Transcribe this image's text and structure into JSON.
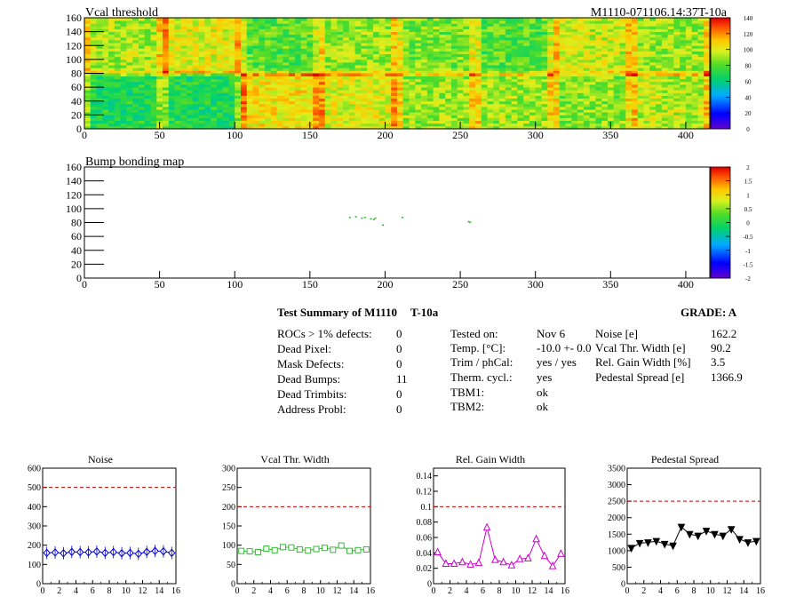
{
  "chart_data": [
    {
      "type": "heatmap",
      "title": "Vcal threshold",
      "title_right": "M1110-071106.14:37T-10a",
      "xlim": [
        0,
        416
      ],
      "ylim": [
        0,
        160
      ],
      "x_ticks": [
        "0",
        "50",
        "100",
        "150",
        "200",
        "250",
        "300",
        "350",
        "400"
      ],
      "y_ticks": [
        "0",
        "20",
        "40",
        "60",
        "80",
        "100",
        "120",
        "140",
        "160"
      ],
      "colorbar": {
        "min": 0,
        "max": 140,
        "ticks": [
          "0",
          "20",
          "40",
          "60",
          "80",
          "100",
          "120",
          "140"
        ]
      },
      "roc_means": {
        "top": [
          92,
          100,
          80,
          90,
          85,
          80,
          96,
          90
        ],
        "bottom": [
          70,
          70,
          104,
          100,
          90,
          90,
          88,
          94
        ]
      }
    },
    {
      "type": "heatmap",
      "title": "Bump bonding map",
      "xlim": [
        0,
        416
      ],
      "ylim": [
        0,
        160
      ],
      "x_ticks": [
        "0",
        "50",
        "100",
        "150",
        "200",
        "250",
        "300",
        "350",
        "400"
      ],
      "y_ticks": [
        "0",
        "20",
        "40",
        "60",
        "80",
        "100",
        "120",
        "140",
        "160"
      ],
      "colorbar": {
        "min": -2,
        "max": 2,
        "ticks": [
          "-2",
          "-1.5",
          "-1",
          "-0.5",
          "0",
          "0.5",
          "1",
          "1.5",
          "2"
        ]
      },
      "points": [
        [
          176,
          87
        ],
        [
          180,
          88
        ],
        [
          184,
          86
        ],
        [
          186,
          87
        ],
        [
          190,
          85
        ],
        [
          192,
          84
        ],
        [
          193,
          86
        ],
        [
          198,
          76
        ],
        [
          211,
          87
        ],
        [
          255,
          81
        ],
        [
          256,
          80
        ]
      ]
    },
    {
      "type": "line",
      "title": "Noise",
      "xlim": [
        0,
        16
      ],
      "ylim": [
        0,
        600
      ],
      "x_ticks": [
        "0",
        "2",
        "4",
        "6",
        "8",
        "10",
        "12",
        "14",
        "16"
      ],
      "y_ticks": [
        "0",
        "100",
        "200",
        "300",
        "400",
        "500",
        "600"
      ],
      "threshold": 500,
      "series": [
        {
          "values": [
            160,
            162,
            158,
            165,
            164,
            163,
            167,
            160,
            164,
            158,
            160,
            155,
            165,
            170,
            168,
            160
          ],
          "color": "#0000cc",
          "marker": "diamond"
        }
      ]
    },
    {
      "type": "line",
      "title": "Vcal Thr. Width",
      "xlim": [
        0,
        16
      ],
      "ylim": [
        0,
        300
      ],
      "x_ticks": [
        "0",
        "2",
        "4",
        "6",
        "8",
        "10",
        "12",
        "14",
        "16"
      ],
      "y_ticks": [
        "0",
        "50",
        "100",
        "150",
        "200",
        "250",
        "300"
      ],
      "threshold": 200,
      "series": [
        {
          "values": [
            85,
            84,
            82,
            91,
            87,
            95,
            94,
            89,
            86,
            90,
            93,
            88,
            99,
            85,
            87,
            89
          ],
          "color": "#33bb33",
          "marker": "square"
        }
      ]
    },
    {
      "type": "line",
      "title": "Rel. Gain Width",
      "xlim": [
        0,
        16
      ],
      "ylim": [
        0,
        0.15
      ],
      "x_ticks": [
        "0",
        "2",
        "4",
        "6",
        "8",
        "10",
        "12",
        "14",
        "16"
      ],
      "y_ticks": [
        "0",
        "0.02",
        "0.04",
        "0.06",
        "0.08",
        "0.1",
        "0.12",
        "0.14"
      ],
      "threshold": 0.1,
      "series": [
        {
          "values": [
            0.041,
            0.026,
            0.026,
            0.028,
            0.025,
            0.027,
            0.073,
            0.031,
            0.028,
            0.024,
            0.032,
            0.033,
            0.058,
            0.036,
            0.023,
            0.039
          ],
          "color": "#cc00cc",
          "marker": "triangle"
        }
      ]
    },
    {
      "type": "line",
      "title": "Pedestal Spread",
      "xlim": [
        0,
        16
      ],
      "ylim": [
        0,
        3500
      ],
      "x_ticks": [
        "0",
        "2",
        "4",
        "6",
        "8",
        "10",
        "12",
        "14",
        "16"
      ],
      "y_ticks": [
        "0",
        "500",
        "1000",
        "1500",
        "2000",
        "2500",
        "3000",
        "3500"
      ],
      "threshold": 2500,
      "series": [
        {
          "values": [
            1080,
            1230,
            1250,
            1290,
            1200,
            1150,
            1720,
            1500,
            1450,
            1600,
            1500,
            1450,
            1650,
            1350,
            1250,
            1290
          ],
          "color": "#000000",
          "marker": "triangle-down"
        }
      ]
    }
  ],
  "summary": {
    "title": "Test Summary of M1110",
    "temp_label": "T-10a",
    "grade": "GRADE:  A",
    "col1": [
      {
        "label": "ROCs > 1% defects:",
        "value": "0"
      },
      {
        "label": "Dead Pixel:",
        "value": "0"
      },
      {
        "label": "Mask Defects:",
        "value": "0"
      },
      {
        "label": "Dead Bumps:",
        "value": "11"
      },
      {
        "label": "Dead Trimbits:",
        "value": "0"
      },
      {
        "label": "Address Probl:",
        "value": "0"
      }
    ],
    "col2": [
      {
        "label": "Tested on:",
        "value": "Nov 6"
      },
      {
        "label": "Temp. [°C]:",
        "value": "-10.0 +- 0.0"
      },
      {
        "label": "Trim / phCal:",
        "value": "yes / yes"
      },
      {
        "label": "Therm. cycl.:",
        "value": "yes"
      },
      {
        "label": "TBM1:",
        "value": "ok"
      },
      {
        "label": "TBM2:",
        "value": "ok"
      }
    ],
    "col3": [
      {
        "label": "Noise [e]",
        "value": "162.2"
      },
      {
        "label": "Vcal Thr. Width [e]",
        "value": "90.2"
      },
      {
        "label": "Rel. Gain Width [%]",
        "value": "3.5"
      },
      {
        "label": "Pedestal Spread [e]",
        "value": "1366.9"
      }
    ]
  }
}
